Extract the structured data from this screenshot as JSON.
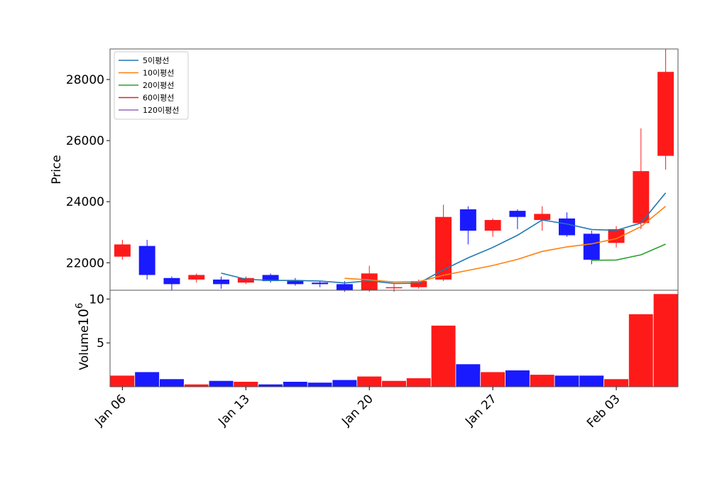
{
  "chart_data": [
    {
      "type": "candlestick",
      "ylabel": "Price",
      "ylim": [
        21100,
        29000
      ],
      "yticks": [
        22000,
        24000,
        26000,
        28000
      ],
      "up_color": "#ff1a1a",
      "down_color": "#1a1aff",
      "candles": [
        {
          "date": "2020-01-06",
          "open": 22200,
          "high": 22750,
          "low": 22100,
          "close": 22600
        },
        {
          "date": "2020-01-07",
          "open": 22550,
          "high": 22750,
          "low": 21450,
          "close": 21600
        },
        {
          "date": "2020-01-08",
          "open": 21500,
          "high": 21550,
          "low": 21100,
          "close": 21300
        },
        {
          "date": "2020-01-09",
          "open": 21450,
          "high": 21650,
          "low": 21350,
          "close": 21600
        },
        {
          "date": "2020-01-10",
          "open": 21450,
          "high": 21550,
          "low": 21150,
          "close": 21300
        },
        {
          "date": "2020-01-13",
          "open": 21350,
          "high": 21550,
          "low": 21300,
          "close": 21500
        },
        {
          "date": "2020-01-14",
          "open": 21600,
          "high": 21650,
          "low": 21350,
          "close": 21400
        },
        {
          "date": "2020-01-15",
          "open": 21400,
          "high": 21500,
          "low": 21250,
          "close": 21300
        },
        {
          "date": "2020-01-16",
          "open": 21350,
          "high": 21400,
          "low": 21200,
          "close": 21300
        },
        {
          "date": "2020-01-17",
          "open": 21300,
          "high": 21400,
          "low": 21050,
          "close": 21100
        },
        {
          "date": "2020-01-20",
          "open": 21100,
          "high": 21900,
          "low": 21050,
          "close": 21650
        },
        {
          "date": "2020-01-21",
          "open": 21200,
          "high": 21300,
          "low": 21050,
          "close": 21200
        },
        {
          "date": "2020-01-22",
          "open": 21200,
          "high": 21450,
          "low": 21150,
          "close": 21400
        },
        {
          "date": "2020-01-23",
          "open": 21450,
          "high": 23900,
          "low": 21400,
          "close": 23500
        },
        {
          "date": "2020-01-24",
          "open": 23750,
          "high": 23850,
          "low": 22600,
          "close": 23050
        },
        {
          "date": "2020-01-27",
          "open": 23050,
          "high": 23450,
          "low": 22850,
          "close": 23400
        },
        {
          "date": "2020-01-28",
          "open": 23700,
          "high": 23750,
          "low": 23100,
          "close": 23500
        },
        {
          "date": "2020-01-29",
          "open": 23400,
          "high": 23850,
          "low": 23050,
          "close": 23600
        },
        {
          "date": "2020-01-30",
          "open": 23450,
          "high": 23650,
          "low": 22850,
          "close": 22900
        },
        {
          "date": "2020-01-31",
          "open": 22950,
          "high": 23050,
          "low": 21950,
          "close": 22100
        },
        {
          "date": "2020-02-03",
          "open": 22650,
          "high": 23200,
          "low": 22500,
          "close": 23100
        },
        {
          "date": "2020-02-04",
          "open": 23300,
          "high": 26400,
          "low": 23100,
          "close": 25000
        },
        {
          "date": "2020-02-05",
          "open": 25500,
          "high": 29000,
          "low": 25050,
          "close": 28250
        }
      ],
      "series": [
        {
          "name": "5이평선",
          "color": "#1f77b4",
          "values": [
            null,
            null,
            null,
            null,
            21660,
            21460,
            21420,
            21420,
            21400,
            21340,
            21410,
            21320,
            21330,
            21770,
            22160,
            22500,
            22900,
            23400,
            23270,
            23090,
            23060,
            23300,
            24290
          ]
        },
        {
          "name": "10이평선",
          "color": "#ff7f0e",
          "values": [
            null,
            null,
            null,
            null,
            null,
            null,
            null,
            null,
            null,
            21490,
            21440,
            21370,
            21380,
            21590,
            21750,
            21910,
            22110,
            22370,
            22520,
            22620,
            22790,
            23180,
            23850
          ]
        },
        {
          "name": "20이평선",
          "color": "#2ca02c",
          "values": [
            null,
            null,
            null,
            null,
            null,
            null,
            null,
            null,
            null,
            null,
            null,
            null,
            null,
            null,
            null,
            null,
            null,
            null,
            null,
            22080,
            22090,
            22260,
            22610
          ]
        },
        {
          "name": "60이평선",
          "color": "#d62728",
          "values": []
        },
        {
          "name": "120이평선",
          "color": "#9467bd",
          "values": []
        }
      ],
      "legend": "top-left"
    },
    {
      "type": "bar",
      "ylabel": "Volume",
      "offset_label": "1e6",
      "offset_base": "10",
      "offset_exp": "6",
      "ylim": [
        0,
        11
      ],
      "yticks": [
        5,
        10
      ],
      "yticklabels": [
        "5",
        "10"
      ],
      "values": [
        1.3,
        1.7,
        0.9,
        0.3,
        0.7,
        0.6,
        0.3,
        0.6,
        0.5,
        0.8,
        1.2,
        0.7,
        1.0,
        7.0,
        2.6,
        1.7,
        1.9,
        1.4,
        1.3,
        1.3,
        0.9,
        8.3,
        10.6
      ]
    }
  ],
  "xaxis": {
    "ticks": [
      {
        "index": 0,
        "label": "Jan 06"
      },
      {
        "index": 5,
        "label": "Jan 13"
      },
      {
        "index": 10,
        "label": "Jan 20"
      },
      {
        "index": 15,
        "label": "Jan 27"
      },
      {
        "index": 20,
        "label": "Feb 03"
      }
    ]
  }
}
